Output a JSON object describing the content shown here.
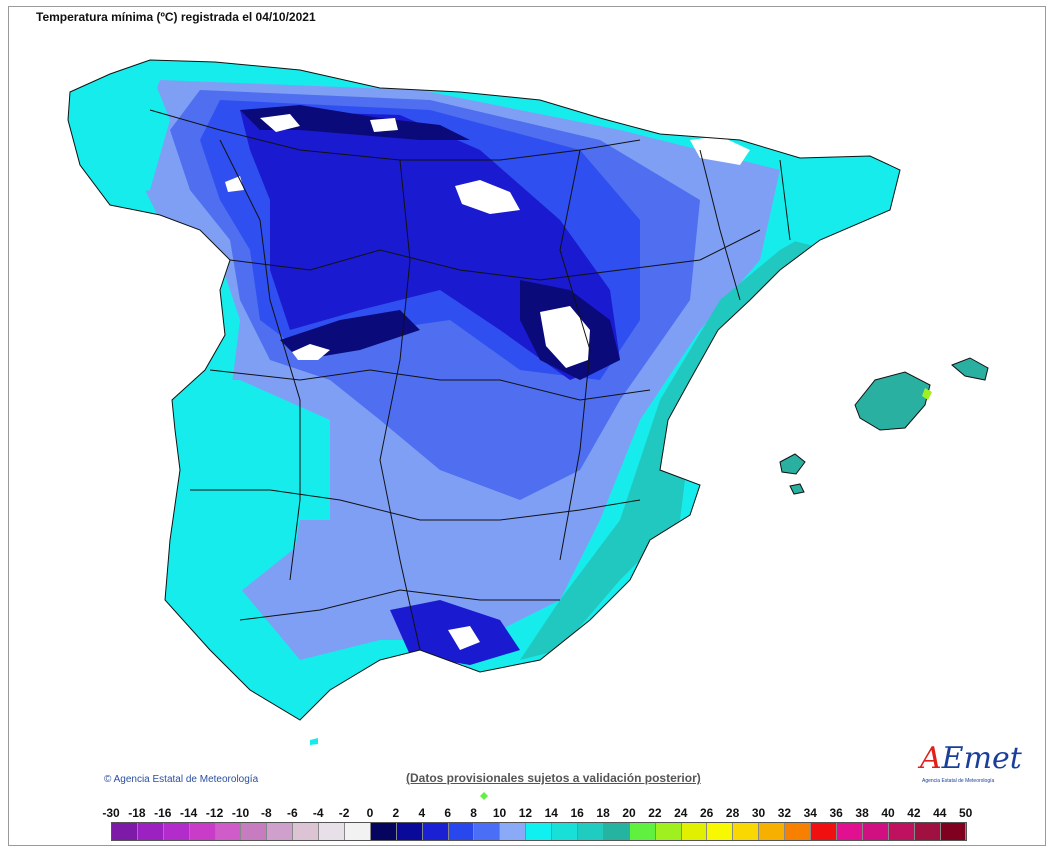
{
  "title": "Temperatura mínima (ºC) registrada el 04/10/2021",
  "copyright": "© Agencia Estatal de Meteorología",
  "disclaimer": "(Datos provisionales sujetos a validación posterior)",
  "logo": {
    "prefix": "A",
    "main": "Emet",
    "subtitle": "Agencia Estatal de Meteorología"
  },
  "map_colors": {
    "white": "#ffffff",
    "darkest": "#0a0a7a",
    "dark_blue": "#1a1ad0",
    "blue": "#2f4ff0",
    "mid_blue": "#4f6ff0",
    "light_blue": "#7f9ff5",
    "cyan": "#16ecec",
    "teal": "#20c8c0",
    "sea_teal": "#2ab0a0",
    "border": "#111111"
  },
  "legend": {
    "labels": [
      "-30",
      "-18",
      "-16",
      "-14",
      "-12",
      "-10",
      "-8",
      "-6",
      "-4",
      "-2",
      "0",
      "2",
      "4",
      "6",
      "8",
      "10",
      "12",
      "14",
      "16",
      "18",
      "20",
      "22",
      "24",
      "26",
      "28",
      "30",
      "32",
      "34",
      "36",
      "38",
      "40",
      "42",
      "44",
      "50"
    ],
    "colors": [
      "#7d1ba8",
      "#9b22c0",
      "#b22ccc",
      "#c83cc8",
      "#cf5cc8",
      "#c87cc0",
      "#d0a0cc",
      "#dcc4d4",
      "#e8e0e8",
      "#f2f2f2",
      "#050560",
      "#0a0a9a",
      "#1a20d4",
      "#2848ee",
      "#4a6ef5",
      "#8aaaf8",
      "#10f0f0",
      "#18e0d8",
      "#20ccc0",
      "#24b4a0",
      "#60f040",
      "#a0f020",
      "#e0f000",
      "#f8f800",
      "#f8d800",
      "#f8b000",
      "#f88000",
      "#f01010",
      "#e01090",
      "#d01080",
      "#c01060",
      "#a01040",
      "#800020"
    ]
  }
}
